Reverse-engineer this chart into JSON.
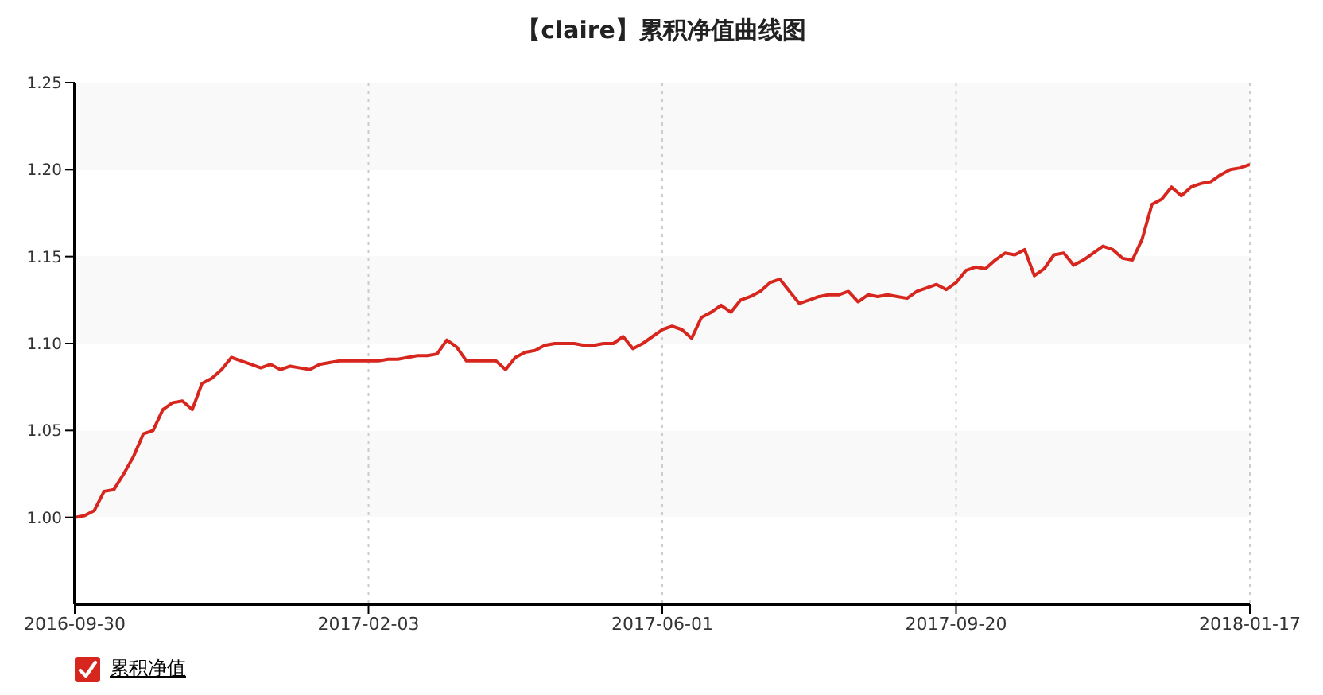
{
  "chart_data": {
    "type": "line",
    "title": "【claire】累积净值曲线图",
    "categories": [
      "2016-09-30",
      null,
      null,
      null,
      null,
      null,
      null,
      null,
      null,
      null,
      null,
      null,
      null,
      null,
      null,
      null,
      null,
      null,
      null,
      null,
      null,
      null,
      null,
      null,
      null,
      null,
      null,
      null,
      null,
      null,
      "2017-02-03",
      null,
      null,
      null,
      null,
      null,
      null,
      null,
      null,
      null,
      null,
      null,
      null,
      null,
      null,
      null,
      null,
      null,
      null,
      null,
      null,
      null,
      null,
      null,
      null,
      null,
      null,
      null,
      null,
      null,
      "2017-06-01",
      null,
      null,
      null,
      null,
      null,
      null,
      null,
      null,
      null,
      null,
      null,
      null,
      null,
      null,
      null,
      null,
      null,
      null,
      null,
      null,
      null,
      null,
      null,
      null,
      null,
      null,
      null,
      null,
      null,
      "2017-09-20",
      null,
      null,
      null,
      null,
      null,
      null,
      null,
      null,
      null,
      null,
      null,
      null,
      null,
      null,
      null,
      null,
      null,
      null,
      null,
      null,
      null,
      null,
      null,
      null,
      null,
      null,
      null,
      null,
      null,
      "2018-01-17"
    ],
    "series": [
      {
        "name": "累积净值",
        "color": "#d7261e",
        "values": [
          1.0,
          1.001,
          1.004,
          1.015,
          1.016,
          1.025,
          1.035,
          1.048,
          1.05,
          1.062,
          1.066,
          1.067,
          1.062,
          1.077,
          1.08,
          1.085,
          1.092,
          1.09,
          1.088,
          1.086,
          1.088,
          1.085,
          1.087,
          1.086,
          1.085,
          1.088,
          1.089,
          1.09,
          1.09,
          1.09,
          1.09,
          1.09,
          1.091,
          1.091,
          1.092,
          1.093,
          1.093,
          1.094,
          1.102,
          1.098,
          1.09,
          1.09,
          1.09,
          1.09,
          1.085,
          1.092,
          1.095,
          1.096,
          1.099,
          1.1,
          1.1,
          1.1,
          1.099,
          1.099,
          1.1,
          1.1,
          1.104,
          1.097,
          1.1,
          1.104,
          1.108,
          1.11,
          1.108,
          1.103,
          1.115,
          1.118,
          1.122,
          1.118,
          1.125,
          1.127,
          1.13,
          1.135,
          1.137,
          1.13,
          1.123,
          1.125,
          1.127,
          1.128,
          1.128,
          1.13,
          1.124,
          1.128,
          1.127,
          1.128,
          1.127,
          1.126,
          1.13,
          1.132,
          1.134,
          1.131,
          1.135,
          1.142,
          1.144,
          1.143,
          1.148,
          1.152,
          1.151,
          1.154,
          1.139,
          1.143,
          1.151,
          1.152,
          1.145,
          1.148,
          1.152,
          1.156,
          1.154,
          1.149,
          1.148,
          1.16,
          1.18,
          1.183,
          1.19,
          1.185,
          1.19,
          1.192,
          1.193,
          1.197,
          1.2,
          1.201,
          1.203
        ]
      }
    ],
    "ylim": [
      0.95,
      1.25
    ],
    "yticks": [
      {
        "value": 1.0,
        "label": "1.00"
      },
      1.05,
      {
        "value": 1.1,
        "label": "1.10"
      },
      1.15,
      {
        "value": 1.2,
        "label": "1.20"
      },
      1.25
    ],
    "grid": true,
    "legend": "bottom left"
  }
}
